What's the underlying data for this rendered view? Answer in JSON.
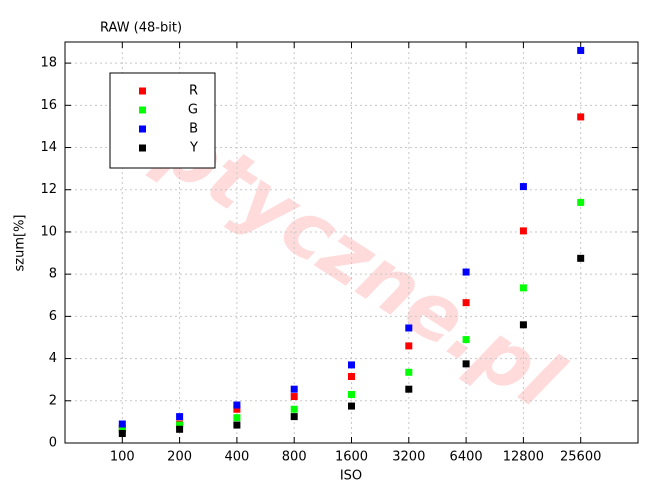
{
  "chart_data": {
    "type": "scatter",
    "title": "RAW (48-bit)",
    "watermark": "Optyczne.pl",
    "x_label": "ISO",
    "y_label": "szum[%]",
    "categories": [
      "100",
      "200",
      "400",
      "800",
      "1600",
      "3200",
      "6400",
      "12800",
      "25600"
    ],
    "series": [
      {
        "name": "R",
        "color": "#ff0000",
        "values": [
          0.7,
          0.9,
          1.6,
          2.2,
          3.15,
          4.6,
          6.65,
          10.05,
          15.45
        ]
      },
      {
        "name": "G",
        "color": "#00ff00",
        "values": [
          0.65,
          0.85,
          1.2,
          1.6,
          2.3,
          3.35,
          4.9,
          7.35,
          11.4
        ]
      },
      {
        "name": "B",
        "color": "#0000ff",
        "values": [
          0.9,
          1.25,
          1.8,
          2.55,
          3.7,
          5.45,
          8.1,
          12.15,
          18.6
        ]
      },
      {
        "name": "Y",
        "color": "#000000",
        "values": [
          0.45,
          0.65,
          0.85,
          1.25,
          1.75,
          2.55,
          3.75,
          5.6,
          8.75
        ]
      }
    ],
    "ylim": [
      0,
      19
    ],
    "yticks": [
      0,
      2,
      4,
      6,
      8,
      10,
      12,
      14,
      16,
      18
    ],
    "grid": true,
    "legend": "top-left"
  }
}
